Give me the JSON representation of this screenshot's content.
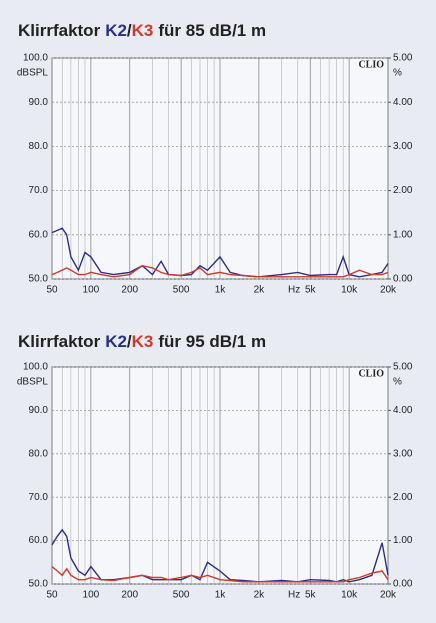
{
  "chart_data": [
    {
      "type": "line",
      "title_before": "Klirrfaktor",
      "title_between": "/",
      "title_after": "für 85 dB/1 m",
      "ylabel": "dBSPL",
      "y2label": "%",
      "xlabel": "Hz",
      "annotation": "CLIO",
      "log_x": true,
      "grid": true,
      "xlim": [
        50,
        20000
      ],
      "xticks": [
        50,
        100,
        200,
        500,
        {
          "value": 1000,
          "label": "1k"
        },
        {
          "value": 2000,
          "label": "2k"
        },
        {
          "value": 5000,
          "label": "5k"
        },
        {
          "value": 10000,
          "label": "10k"
        },
        {
          "value": 20000,
          "label": "20k"
        }
      ],
      "x_minor_ticks": [
        60,
        70,
        80,
        90,
        300,
        400,
        600,
        700,
        800,
        900,
        3000,
        4000,
        6000,
        7000,
        8000,
        9000
      ],
      "ylim": [
        50,
        100
      ],
      "yticks": [
        {
          "value": 50,
          "label": "50.0"
        },
        {
          "value": 60,
          "label": "60.0"
        },
        {
          "value": 70,
          "label": "70.0"
        },
        {
          "value": 80,
          "label": "80.0"
        },
        {
          "value": 90,
          "label": "90.0"
        },
        {
          "value": 100,
          "label": "100.0"
        }
      ],
      "y2lim": [
        0,
        5
      ],
      "y2ticks": [
        {
          "value": 0,
          "label": "0.00"
        },
        {
          "value": 1,
          "label": "1.00"
        },
        {
          "value": 2,
          "label": "2.00"
        },
        {
          "value": 3,
          "label": "3.00"
        },
        {
          "value": 4,
          "label": "4.00"
        },
        {
          "value": 5,
          "label": "5.00"
        }
      ],
      "x": [
        50,
        55,
        60,
        65,
        70,
        80,
        90,
        100,
        120,
        150,
        200,
        250,
        300,
        350,
        400,
        500,
        600,
        700,
        800,
        1000,
        1200,
        1500,
        2000,
        3000,
        4000,
        5000,
        7000,
        8000,
        9000,
        10000,
        12000,
        15000,
        18000,
        20000
      ],
      "series": [
        {
          "name": "K2",
          "color": "#2a2f8a",
          "values": [
            60.5,
            61,
            61.5,
            60,
            55,
            52,
            56,
            55,
            51.5,
            51,
            51.5,
            53,
            51,
            54,
            51,
            50.8,
            51,
            53,
            52,
            55,
            51.5,
            50.8,
            50.5,
            51,
            51.5,
            50.8,
            51,
            51,
            55,
            51,
            50.5,
            51,
            51.5,
            53.5
          ]
        },
        {
          "name": "K3",
          "color": "#d23a2a",
          "values": [
            51,
            51.5,
            52,
            52.5,
            52,
            51,
            51,
            51.5,
            51,
            50.5,
            51,
            53,
            52.5,
            51.5,
            51,
            50.8,
            51.5,
            52.5,
            51,
            51.5,
            51,
            50.8,
            50.5,
            50.5,
            50.5,
            50.5,
            50.5,
            50.5,
            50.5,
            51,
            52,
            51,
            51,
            51.5
          ]
        }
      ]
    },
    {
      "type": "line",
      "title_before": "Klirrfaktor",
      "title_between": "/",
      "title_after": "für 95 dB/1 m",
      "ylabel": "dBSPL",
      "y2label": "%",
      "xlabel": "Hz",
      "annotation": "CLIO",
      "log_x": true,
      "grid": true,
      "xlim": [
        50,
        20000
      ],
      "xticks": [
        50,
        100,
        200,
        500,
        {
          "value": 1000,
          "label": "1k"
        },
        {
          "value": 2000,
          "label": "2k"
        },
        {
          "value": 5000,
          "label": "5k"
        },
        {
          "value": 10000,
          "label": "10k"
        },
        {
          "value": 20000,
          "label": "20k"
        }
      ],
      "x_minor_ticks": [
        60,
        70,
        80,
        90,
        300,
        400,
        600,
        700,
        800,
        900,
        3000,
        4000,
        6000,
        7000,
        8000,
        9000
      ],
      "ylim": [
        50,
        100
      ],
      "yticks": [
        {
          "value": 50,
          "label": "50.0"
        },
        {
          "value": 60,
          "label": "60.0"
        },
        {
          "value": 70,
          "label": "70.0"
        },
        {
          "value": 80,
          "label": "80.0"
        },
        {
          "value": 90,
          "label": "90.0"
        },
        {
          "value": 100,
          "label": "100.0"
        }
      ],
      "y2lim": [
        0,
        5
      ],
      "y2ticks": [
        {
          "value": 0,
          "label": "0.00"
        },
        {
          "value": 1,
          "label": "1.00"
        },
        {
          "value": 2,
          "label": "2.00"
        },
        {
          "value": 3,
          "label": "3.00"
        },
        {
          "value": 4,
          "label": "4.00"
        },
        {
          "value": 5,
          "label": "5.00"
        }
      ],
      "x": [
        50,
        55,
        60,
        65,
        70,
        80,
        90,
        100,
        120,
        150,
        200,
        250,
        300,
        350,
        400,
        500,
        600,
        700,
        800,
        1000,
        1200,
        1500,
        2000,
        3000,
        4000,
        5000,
        7000,
        8000,
        9000,
        10000,
        12000,
        15000,
        18000,
        20000
      ],
      "series": [
        {
          "name": "K2",
          "color": "#2a2f8a",
          "values": [
            59,
            61,
            62.5,
            61,
            56,
            53,
            52,
            54,
            51,
            51,
            51.5,
            52,
            51,
            51,
            51,
            51,
            52,
            51,
            55,
            53,
            51,
            50.8,
            50.5,
            50.8,
            50.5,
            51,
            50.8,
            50.5,
            51,
            50.5,
            51,
            52,
            59.5,
            52
          ]
        },
        {
          "name": "K3",
          "color": "#d23a2a",
          "values": [
            54,
            53,
            52,
            53.5,
            52,
            51,
            51,
            51.5,
            51,
            50.8,
            51.5,
            52,
            51.5,
            51.5,
            51,
            51.5,
            52,
            51.5,
            52,
            51,
            50.8,
            50.5,
            50.5,
            50.5,
            50.5,
            50.5,
            50.5,
            50.5,
            50.5,
            51,
            51.5,
            52.5,
            53,
            51
          ]
        }
      ]
    }
  ]
}
